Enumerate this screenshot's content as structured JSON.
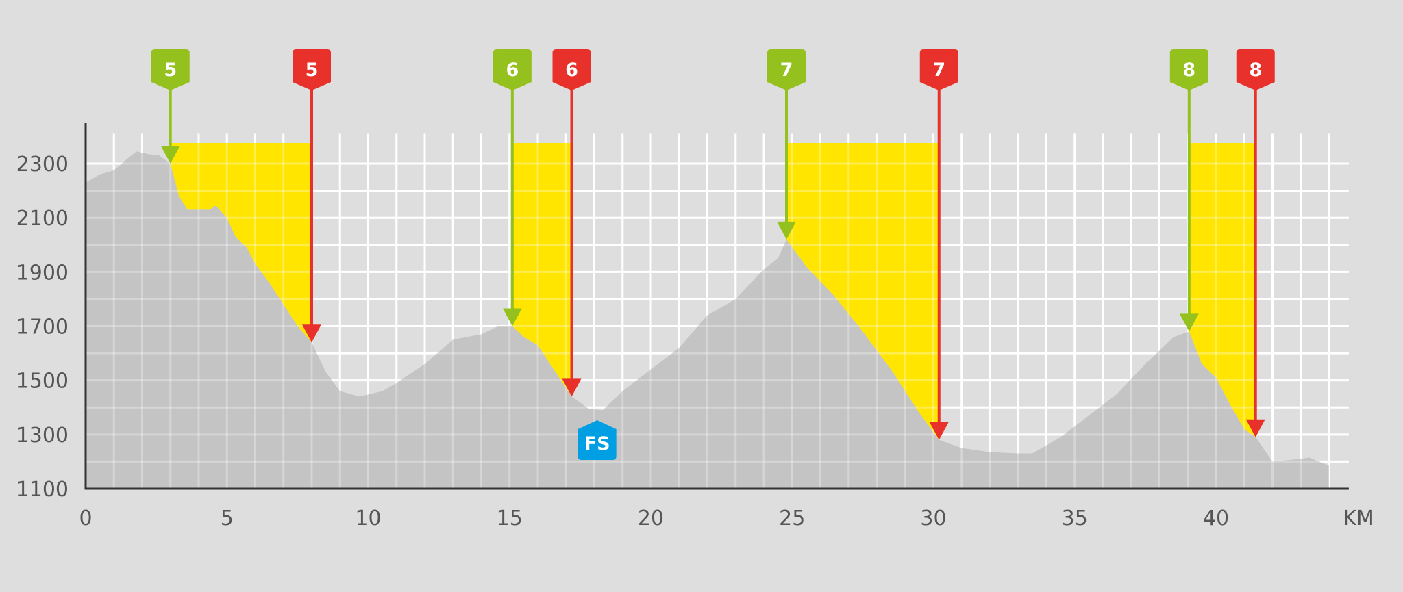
{
  "chart_data": {
    "type": "area",
    "title": "",
    "xlabel": "KM",
    "ylabel": "",
    "xlim": [
      0,
      44.7
    ],
    "ylim": [
      1100,
      2410
    ],
    "x_ticks": [
      0,
      5,
      10,
      15,
      20,
      25,
      30,
      35,
      40
    ],
    "y_ticks": [
      1100,
      1300,
      1500,
      1700,
      1900,
      2100,
      2300
    ],
    "grid": true,
    "profile": {
      "km": [
        0,
        0.5,
        1,
        1.5,
        1.8,
        2.2,
        2.6,
        3.0,
        3.3,
        3.6,
        4.0,
        4.4,
        4.6,
        5.0,
        5.3,
        5.7,
        6.0,
        6.5,
        7.0,
        7.5,
        8.0,
        8.5,
        9.0,
        9.7,
        10.5,
        11,
        12,
        13,
        14,
        14.6,
        15.1,
        15.5,
        16,
        16.5,
        17.2,
        17.8,
        18.3,
        19,
        20,
        21,
        22,
        23,
        24,
        24.5,
        24.8,
        25.5,
        26.5,
        27.5,
        28.5,
        29.5,
        30.2,
        31,
        32,
        33,
        33.5,
        34.5,
        35.5,
        36.5,
        37.5,
        38.5,
        39.05,
        39.5,
        40.0,
        40.5,
        41.0,
        41.4,
        42.0,
        43.0,
        43.3,
        44.0
      ],
      "elevation": [
        2230,
        2260,
        2275,
        2320,
        2345,
        2335,
        2330,
        2300,
        2180,
        2130,
        2130,
        2130,
        2145,
        2100,
        2030,
        1990,
        1930,
        1860,
        1780,
        1700,
        1640,
        1530,
        1460,
        1440,
        1460,
        1490,
        1560,
        1650,
        1670,
        1700,
        1700,
        1660,
        1630,
        1550,
        1440,
        1395,
        1390,
        1460,
        1540,
        1620,
        1740,
        1800,
        1910,
        1950,
        2020,
        1920,
        1810,
        1680,
        1540,
        1380,
        1280,
        1250,
        1235,
        1230,
        1230,
        1290,
        1370,
        1450,
        1560,
        1660,
        1680,
        1560,
        1510,
        1410,
        1320,
        1290,
        1200,
        1210,
        1215,
        1185
      ]
    },
    "segments": [
      {
        "label": "5",
        "start_km": 3.0,
        "end_km": 8.0
      },
      {
        "label": "6",
        "start_km": 15.1,
        "end_km": 17.2
      },
      {
        "label": "7",
        "start_km": 24.8,
        "end_km": 30.2
      },
      {
        "label": "8",
        "start_km": 39.05,
        "end_km": 41.4
      }
    ],
    "segment_top_elevation": 2376,
    "markers": [
      {
        "label": "FS",
        "km": 18.1
      }
    ],
    "colors": {
      "background": "#dedede",
      "profile": "#c4c4c4",
      "grid": "#ffffff",
      "highlight": "#ffe500",
      "start_marker": "#95c11f",
      "end_marker": "#e8312a",
      "fs_marker": "#009fe3",
      "axis": "#333333"
    }
  }
}
